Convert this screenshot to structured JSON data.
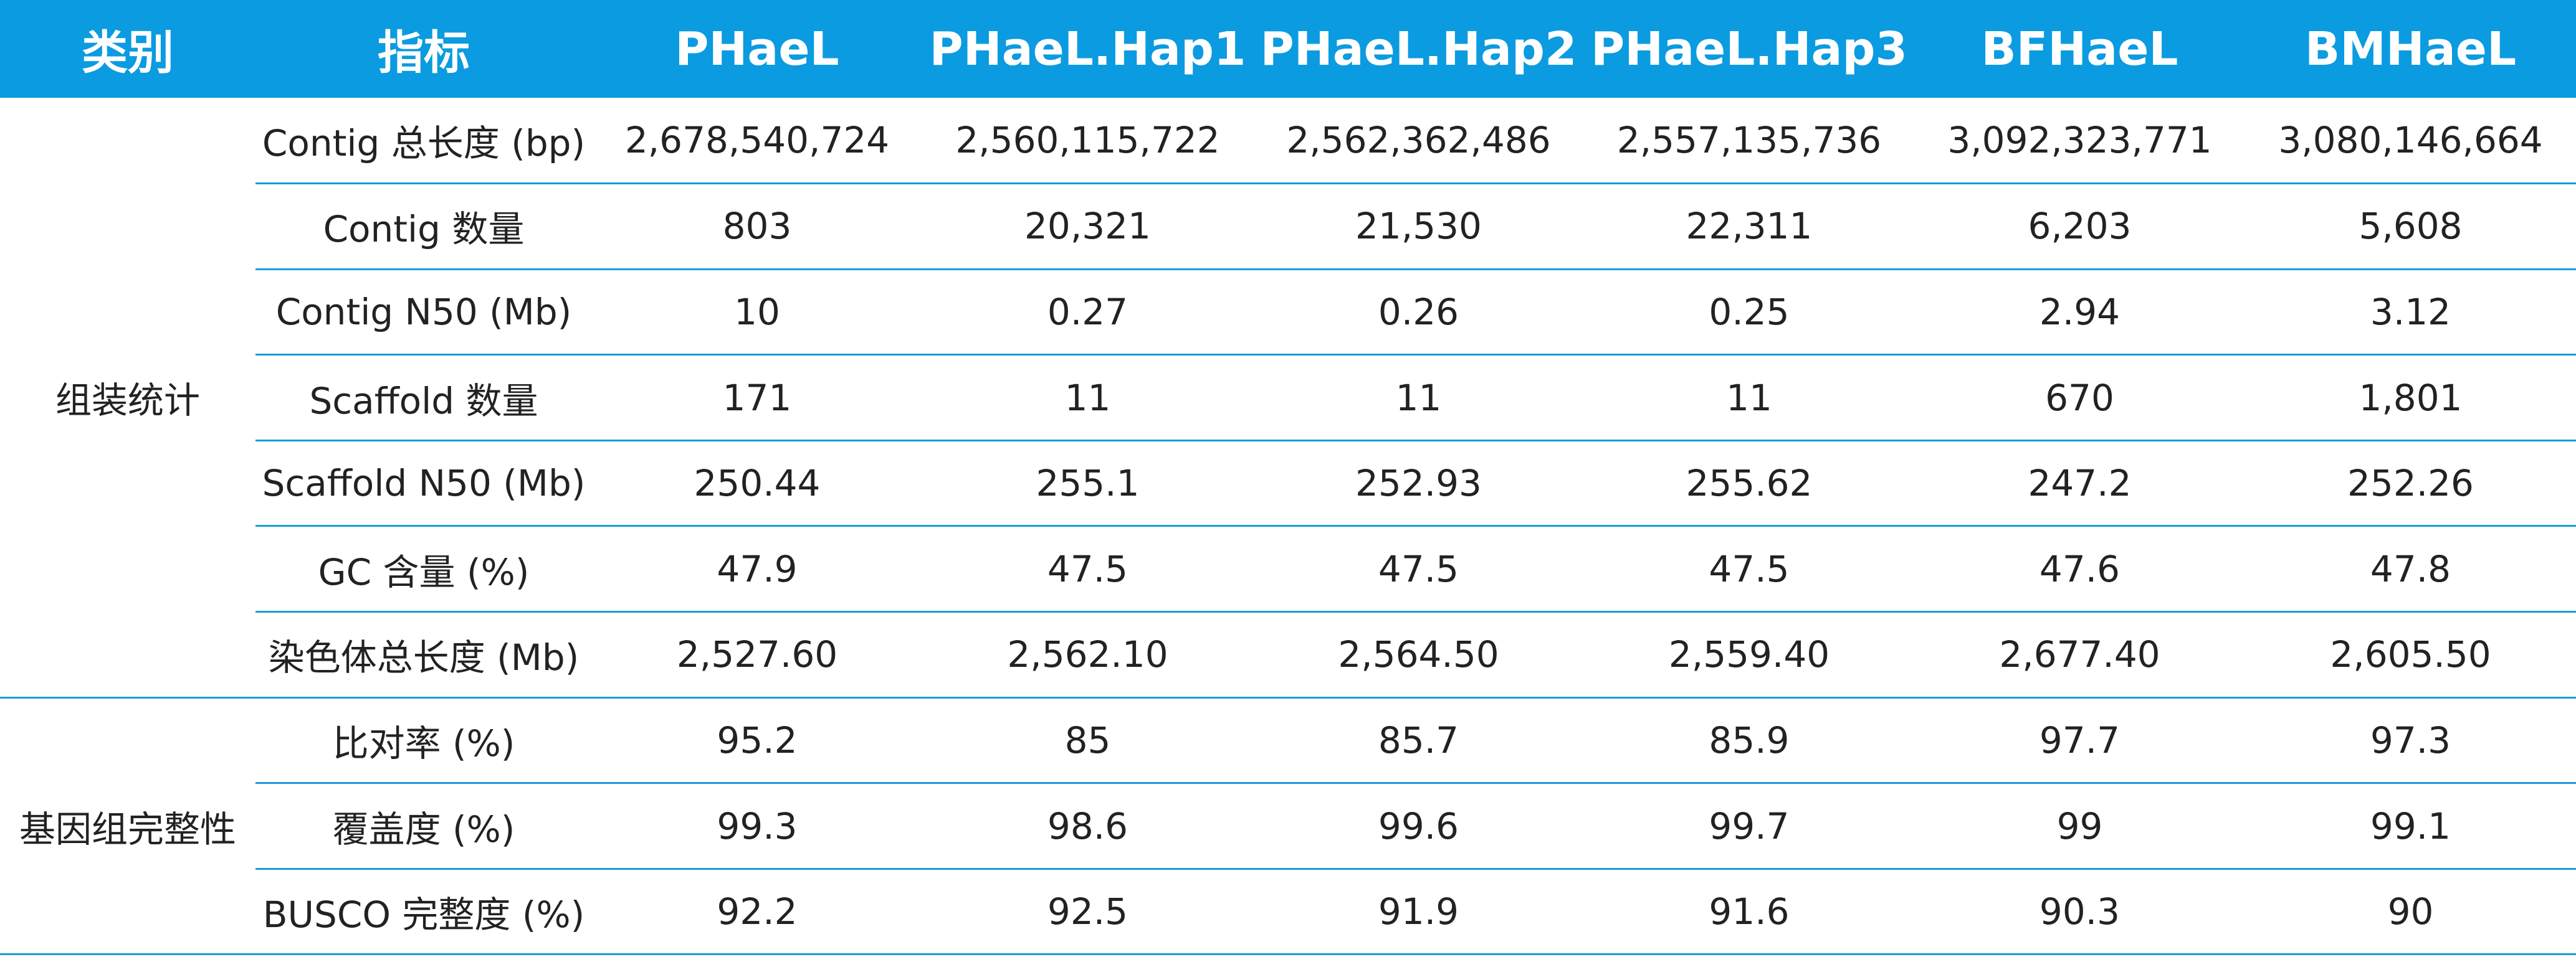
{
  "header": [
    "类别",
    "指标",
    "PHaeL",
    "PHaeL.Hap1",
    "PHaeL.Hap2",
    "PHaeL.Hap3",
    "BFHaeL",
    "BMHaeL"
  ],
  "groups": [
    {
      "category": "组装统计",
      "rows": [
        {
          "metric": "Contig 总长度 (bp)",
          "values": [
            "2,678,540,724",
            "2,560,115,722",
            "2,562,362,486",
            "2,557,135,736",
            "3,092,323,771",
            "3,080,146,664"
          ]
        },
        {
          "metric": "Contig 数量",
          "values": [
            "803",
            "20,321",
            "21,530",
            "22,311",
            "6,203",
            "5,608"
          ]
        },
        {
          "metric": "Contig N50 (Mb)",
          "values": [
            "10",
            "0.27",
            "0.26",
            "0.25",
            "2.94",
            "3.12"
          ]
        },
        {
          "metric": "Scaffold 数量",
          "values": [
            "171",
            "11",
            "11",
            "11",
            "670",
            "1,801"
          ]
        },
        {
          "metric": "Scaffold N50 (Mb)",
          "values": [
            "250.44",
            "255.1",
            "252.93",
            "255.62",
            "247.2",
            "252.26"
          ]
        },
        {
          "metric": "GC 含量 (%)",
          "values": [
            "47.9",
            "47.5",
            "47.5",
            "47.5",
            "47.6",
            "47.8"
          ]
        },
        {
          "metric": "染色体总长度 (Mb)",
          "values": [
            "2,527.60",
            "2,562.10",
            "2,564.50",
            "2,559.40",
            "2,677.40",
            "2,605.50"
          ]
        }
      ]
    },
    {
      "category": "基因组完整性",
      "rows": [
        {
          "metric": "比对率 (%)",
          "values": [
            "95.2",
            "85",
            "85.7",
            "85.9",
            "97.7",
            "97.3"
          ]
        },
        {
          "metric": "覆盖度 (%)",
          "values": [
            "99.3",
            "98.6",
            "99.6",
            "99.7",
            "99",
            "99.1"
          ]
        },
        {
          "metric": "BUSCO 完整度 (%)",
          "values": [
            "92.2",
            "92.5",
            "91.9",
            "91.6",
            "90.3",
            "90"
          ]
        }
      ]
    }
  ]
}
